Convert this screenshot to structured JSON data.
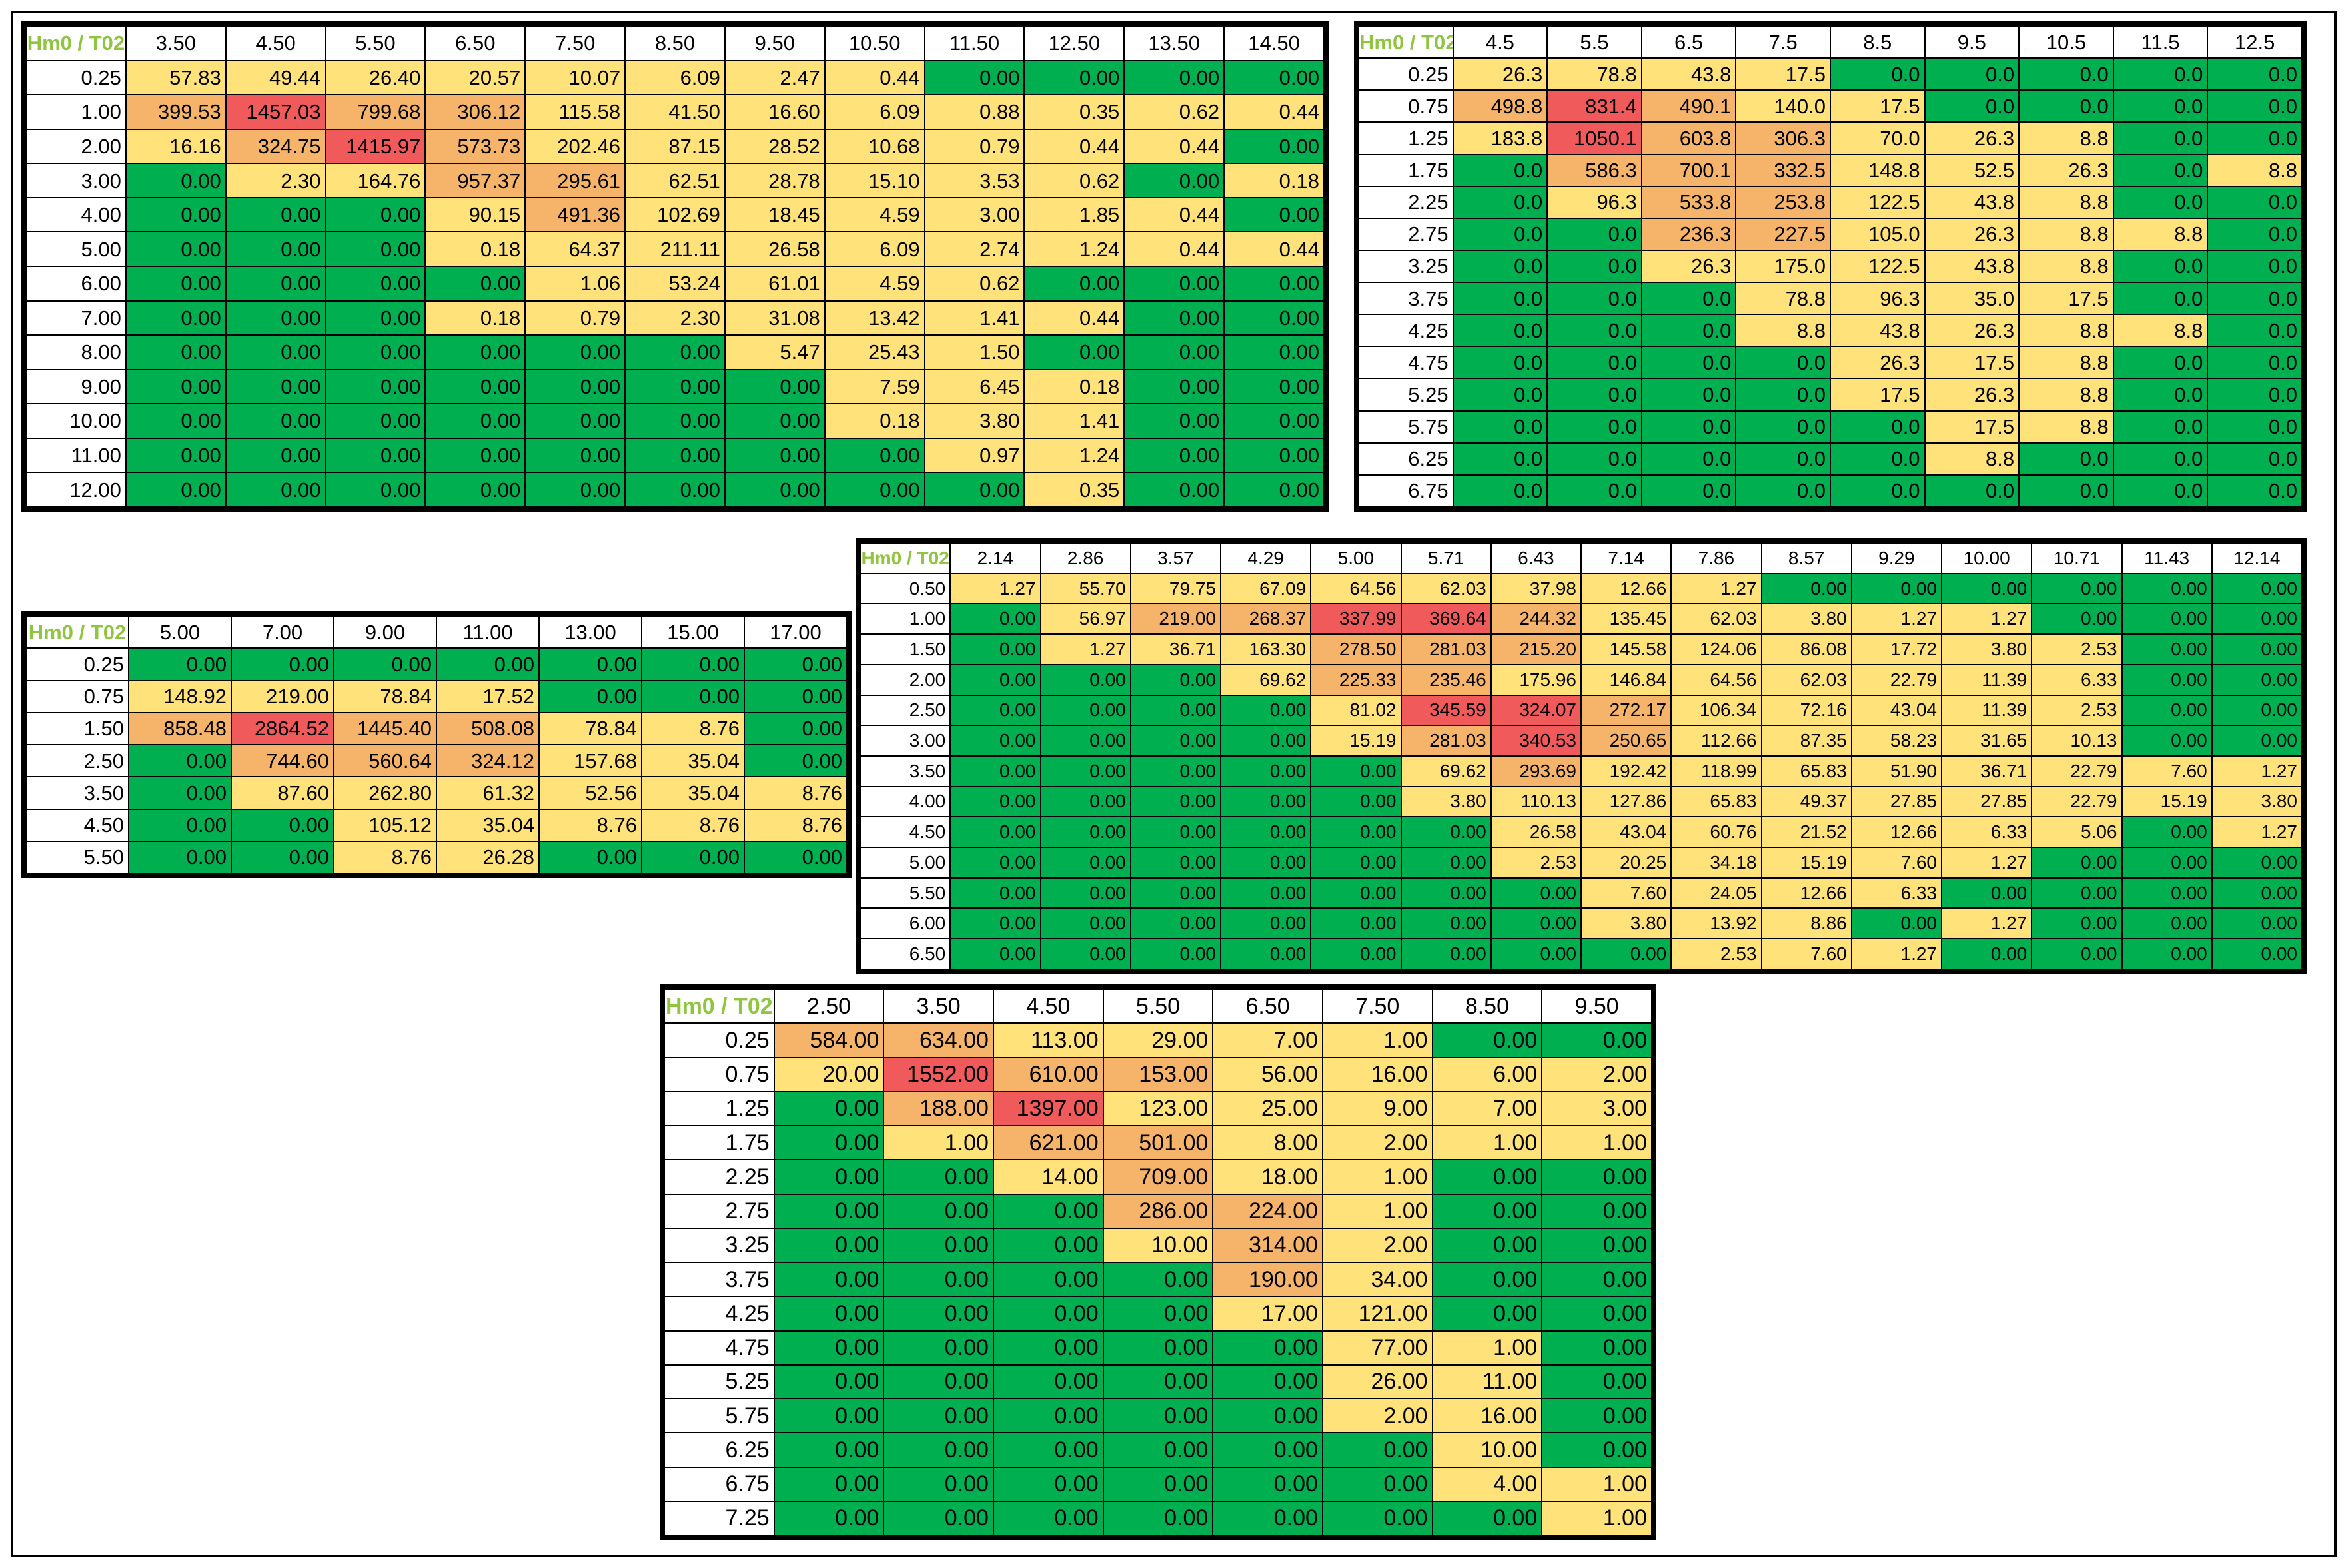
{
  "colors": {
    "green": "#00b050",
    "yellow": "#ffe27a",
    "orange": "#f6b46b",
    "red": "#f15a5a",
    "corner_text": "#8fc53f"
  },
  "chart_data": [
    {
      "type": "table",
      "corner": "Hm0 / T02",
      "columns": [
        "3.50",
        "4.50",
        "5.50",
        "6.50",
        "7.50",
        "8.50",
        "9.50",
        "10.50",
        "11.50",
        "12.50",
        "13.50",
        "14.50"
      ],
      "rows": [
        "0.25",
        "1.00",
        "2.00",
        "3.00",
        "4.00",
        "5.00",
        "6.00",
        "7.00",
        "8.00",
        "9.00",
        "10.00",
        "11.00",
        "12.00"
      ],
      "values": [
        [
          "57.83",
          "49.44",
          "26.40",
          "20.57",
          "10.07",
          "6.09",
          "2.47",
          "0.44",
          "0.00",
          "0.00",
          "0.00",
          "0.00"
        ],
        [
          "399.53",
          "1457.03",
          "799.68",
          "306.12",
          "115.58",
          "41.50",
          "16.60",
          "6.09",
          "0.88",
          "0.35",
          "0.62",
          "0.44"
        ],
        [
          "16.16",
          "324.75",
          "1415.97",
          "573.73",
          "202.46",
          "87.15",
          "28.52",
          "10.68",
          "0.79",
          "0.44",
          "0.44",
          "0.00"
        ],
        [
          "0.00",
          "2.30",
          "164.76",
          "957.37",
          "295.61",
          "62.51",
          "28.78",
          "15.10",
          "3.53",
          "0.62",
          "0.00",
          "0.18"
        ],
        [
          "0.00",
          "0.00",
          "0.00",
          "90.15",
          "491.36",
          "102.69",
          "18.45",
          "4.59",
          "3.00",
          "1.85",
          "0.44",
          "0.00"
        ],
        [
          "0.00",
          "0.00",
          "0.00",
          "0.18",
          "64.37",
          "211.11",
          "26.58",
          "6.09",
          "2.74",
          "1.24",
          "0.44",
          "0.44"
        ],
        [
          "0.00",
          "0.00",
          "0.00",
          "0.00",
          "1.06",
          "53.24",
          "61.01",
          "4.59",
          "0.62",
          "0.00",
          "0.00",
          "0.00"
        ],
        [
          "0.00",
          "0.00",
          "0.00",
          "0.18",
          "0.79",
          "2.30",
          "31.08",
          "13.42",
          "1.41",
          "0.44",
          "0.00",
          "0.00"
        ],
        [
          "0.00",
          "0.00",
          "0.00",
          "0.00",
          "0.00",
          "0.00",
          "5.47",
          "25.43",
          "1.50",
          "0.00",
          "0.00",
          "0.00"
        ],
        [
          "0.00",
          "0.00",
          "0.00",
          "0.00",
          "0.00",
          "0.00",
          "0.00",
          "7.59",
          "6.45",
          "0.18",
          "0.00",
          "0.00"
        ],
        [
          "0.00",
          "0.00",
          "0.00",
          "0.00",
          "0.00",
          "0.00",
          "0.00",
          "0.18",
          "3.80",
          "1.41",
          "0.00",
          "0.00"
        ],
        [
          "0.00",
          "0.00",
          "0.00",
          "0.00",
          "0.00",
          "0.00",
          "0.00",
          "0.00",
          "0.97",
          "1.24",
          "0.00",
          "0.00"
        ],
        [
          "0.00",
          "0.00",
          "0.00",
          "0.00",
          "0.00",
          "0.00",
          "0.00",
          "0.00",
          "0.00",
          "0.35",
          "0.00",
          "0.00"
        ]
      ],
      "color_thresholds": [
        0.001,
        250,
        1000
      ]
    },
    {
      "type": "table",
      "corner": "Hm0 / T02",
      "columns": [
        "4.5",
        "5.5",
        "6.5",
        "7.5",
        "8.5",
        "9.5",
        "10.5",
        "11.5",
        "12.5"
      ],
      "rows": [
        "0.25",
        "0.75",
        "1.25",
        "1.75",
        "2.25",
        "2.75",
        "3.25",
        "3.75",
        "4.25",
        "4.75",
        "5.25",
        "5.75",
        "6.25",
        "6.75"
      ],
      "values": [
        [
          "26.3",
          "78.8",
          "43.8",
          "17.5",
          "0.0",
          "0.0",
          "0.0",
          "0.0",
          "0.0"
        ],
        [
          "498.8",
          "831.4",
          "490.1",
          "140.0",
          "17.5",
          "0.0",
          "0.0",
          "0.0",
          "0.0"
        ],
        [
          "183.8",
          "1050.1",
          "603.8",
          "306.3",
          "70.0",
          "26.3",
          "8.8",
          "0.0",
          "0.0"
        ],
        [
          "0.0",
          "586.3",
          "700.1",
          "332.5",
          "148.8",
          "52.5",
          "26.3",
          "0.0",
          "8.8"
        ],
        [
          "0.0",
          "96.3",
          "533.8",
          "253.8",
          "122.5",
          "43.8",
          "8.8",
          "0.0",
          "0.0"
        ],
        [
          "0.0",
          "0.0",
          "236.3",
          "227.5",
          "105.0",
          "26.3",
          "8.8",
          "8.8",
          "0.0"
        ],
        [
          "0.0",
          "0.0",
          "26.3",
          "175.0",
          "122.5",
          "43.8",
          "8.8",
          "0.0",
          "0.0"
        ],
        [
          "0.0",
          "0.0",
          "0.0",
          "78.8",
          "96.3",
          "35.0",
          "17.5",
          "0.0",
          "0.0"
        ],
        [
          "0.0",
          "0.0",
          "0.0",
          "8.8",
          "43.8",
          "26.3",
          "8.8",
          "8.8",
          "0.0"
        ],
        [
          "0.0",
          "0.0",
          "0.0",
          "0.0",
          "26.3",
          "17.5",
          "8.8",
          "0.0",
          "0.0"
        ],
        [
          "0.0",
          "0.0",
          "0.0",
          "0.0",
          "17.5",
          "26.3",
          "8.8",
          "0.0",
          "0.0"
        ],
        [
          "0.0",
          "0.0",
          "0.0",
          "0.0",
          "0.0",
          "17.5",
          "8.8",
          "0.0",
          "0.0"
        ],
        [
          "0.0",
          "0.0",
          "0.0",
          "0.0",
          "0.0",
          "8.8",
          "0.0",
          "0.0",
          "0.0"
        ],
        [
          "0.0",
          "0.0",
          "0.0",
          "0.0",
          "0.0",
          "0.0",
          "0.0",
          "0.0",
          "0.0"
        ]
      ],
      "color_thresholds": [
        0.001,
        200,
        750
      ]
    },
    {
      "type": "table",
      "corner": "Hm0 / T02",
      "columns": [
        "5.00",
        "7.00",
        "9.00",
        "11.00",
        "13.00",
        "15.00",
        "17.00"
      ],
      "rows": [
        "0.25",
        "0.75",
        "1.50",
        "2.50",
        "3.50",
        "4.50",
        "5.50"
      ],
      "values": [
        [
          "0.00",
          "0.00",
          "0.00",
          "0.00",
          "0.00",
          "0.00",
          "0.00"
        ],
        [
          "148.92",
          "219.00",
          "78.84",
          "17.52",
          "0.00",
          "0.00",
          "0.00"
        ],
        [
          "858.48",
          "2864.52",
          "1445.40",
          "508.08",
          "78.84",
          "8.76",
          "0.00"
        ],
        [
          "0.00",
          "744.60",
          "560.64",
          "324.12",
          "157.68",
          "35.04",
          "0.00"
        ],
        [
          "0.00",
          "87.60",
          "262.80",
          "61.32",
          "52.56",
          "35.04",
          "8.76"
        ],
        [
          "0.00",
          "0.00",
          "105.12",
          "35.04",
          "8.76",
          "8.76",
          "8.76"
        ],
        [
          "0.00",
          "0.00",
          "8.76",
          "26.28",
          "0.00",
          "0.00",
          "0.00"
        ]
      ],
      "color_thresholds": [
        0.001,
        300,
        2000
      ]
    },
    {
      "type": "table",
      "corner": "Hm0 / T02",
      "columns": [
        "2.14",
        "2.86",
        "3.57",
        "4.29",
        "5.00",
        "5.71",
        "6.43",
        "7.14",
        "7.86",
        "8.57",
        "9.29",
        "10.00",
        "10.71",
        "11.43",
        "12.14"
      ],
      "rows": [
        "0.50",
        "1.00",
        "1.50",
        "2.00",
        "2.50",
        "3.00",
        "3.50",
        "4.00",
        "4.50",
        "5.00",
        "5.50",
        "6.00",
        "6.50"
      ],
      "values": [
        [
          "1.27",
          "55.70",
          "79.75",
          "67.09",
          "64.56",
          "62.03",
          "37.98",
          "12.66",
          "1.27",
          "0.00",
          "0.00",
          "0.00",
          "0.00",
          "0.00",
          "0.00"
        ],
        [
          "0.00",
          "56.97",
          "219.00",
          "268.37",
          "337.99",
          "369.64",
          "244.32",
          "135.45",
          "62.03",
          "3.80",
          "1.27",
          "1.27",
          "0.00",
          "0.00",
          "0.00"
        ],
        [
          "0.00",
          "1.27",
          "36.71",
          "163.30",
          "278.50",
          "281.03",
          "215.20",
          "145.58",
          "124.06",
          "86.08",
          "17.72",
          "3.80",
          "2.53",
          "0.00",
          "0.00"
        ],
        [
          "0.00",
          "0.00",
          "0.00",
          "69.62",
          "225.33",
          "235.46",
          "175.96",
          "146.84",
          "64.56",
          "62.03",
          "22.79",
          "11.39",
          "6.33",
          "0.00",
          "0.00"
        ],
        [
          "0.00",
          "0.00",
          "0.00",
          "0.00",
          "81.02",
          "345.59",
          "324.07",
          "272.17",
          "106.34",
          "72.16",
          "43.04",
          "11.39",
          "2.53",
          "0.00",
          "0.00"
        ],
        [
          "0.00",
          "0.00",
          "0.00",
          "0.00",
          "15.19",
          "281.03",
          "340.53",
          "250.65",
          "112.66",
          "87.35",
          "58.23",
          "31.65",
          "10.13",
          "0.00",
          "0.00"
        ],
        [
          "0.00",
          "0.00",
          "0.00",
          "0.00",
          "0.00",
          "69.62",
          "293.69",
          "192.42",
          "118.99",
          "65.83",
          "51.90",
          "36.71",
          "22.79",
          "7.60",
          "1.27"
        ],
        [
          "0.00",
          "0.00",
          "0.00",
          "0.00",
          "0.00",
          "3.80",
          "110.13",
          "127.86",
          "65.83",
          "49.37",
          "27.85",
          "27.85",
          "22.79",
          "15.19",
          "3.80"
        ],
        [
          "0.00",
          "0.00",
          "0.00",
          "0.00",
          "0.00",
          "0.00",
          "26.58",
          "43.04",
          "60.76",
          "21.52",
          "12.66",
          "6.33",
          "5.06",
          "0.00",
          "1.27"
        ],
        [
          "0.00",
          "0.00",
          "0.00",
          "0.00",
          "0.00",
          "0.00",
          "2.53",
          "20.25",
          "34.18",
          "15.19",
          "7.60",
          "1.27",
          "0.00",
          "0.00",
          "0.00"
        ],
        [
          "0.00",
          "0.00",
          "0.00",
          "0.00",
          "0.00",
          "0.00",
          "0.00",
          "7.60",
          "24.05",
          "12.66",
          "6.33",
          "0.00",
          "0.00",
          "0.00",
          "0.00"
        ],
        [
          "0.00",
          "0.00",
          "0.00",
          "0.00",
          "0.00",
          "0.00",
          "0.00",
          "3.80",
          "13.92",
          "8.86",
          "0.00",
          "1.27",
          "0.00",
          "0.00",
          "0.00"
        ],
        [
          "0.00",
          "0.00",
          "0.00",
          "0.00",
          "0.00",
          "0.00",
          "0.00",
          "0.00",
          "2.53",
          "7.60",
          "1.27",
          "0.00",
          "0.00",
          "0.00",
          "0.00"
        ]
      ],
      "color_thresholds": [
        0.001,
        200,
        300
      ]
    },
    {
      "type": "table",
      "corner": "Hm0 / T02",
      "columns": [
        "2.50",
        "3.50",
        "4.50",
        "5.50",
        "6.50",
        "7.50",
        "8.50",
        "9.50"
      ],
      "rows": [
        "0.25",
        "0.75",
        "1.25",
        "1.75",
        "2.25",
        "2.75",
        "3.25",
        "3.75",
        "4.25",
        "4.75",
        "5.25",
        "5.75",
        "6.25",
        "6.75",
        "7.25"
      ],
      "values": [
        [
          "584.00",
          "634.00",
          "113.00",
          "29.00",
          "7.00",
          "1.00",
          "0.00",
          "0.00"
        ],
        [
          "20.00",
          "1552.00",
          "610.00",
          "153.00",
          "56.00",
          "16.00",
          "6.00",
          "2.00"
        ],
        [
          "0.00",
          "188.00",
          "1397.00",
          "123.00",
          "25.00",
          "9.00",
          "7.00",
          "3.00"
        ],
        [
          "0.00",
          "1.00",
          "621.00",
          "501.00",
          "8.00",
          "2.00",
          "1.00",
          "1.00"
        ],
        [
          "0.00",
          "0.00",
          "14.00",
          "709.00",
          "18.00",
          "1.00",
          "0.00",
          "0.00"
        ],
        [
          "0.00",
          "0.00",
          "0.00",
          "286.00",
          "224.00",
          "1.00",
          "0.00",
          "0.00"
        ],
        [
          "0.00",
          "0.00",
          "0.00",
          "10.00",
          "314.00",
          "2.00",
          "0.00",
          "0.00"
        ],
        [
          "0.00",
          "0.00",
          "0.00",
          "0.00",
          "190.00",
          "34.00",
          "0.00",
          "0.00"
        ],
        [
          "0.00",
          "0.00",
          "0.00",
          "0.00",
          "17.00",
          "121.00",
          "0.00",
          "0.00"
        ],
        [
          "0.00",
          "0.00",
          "0.00",
          "0.00",
          "0.00",
          "77.00",
          "1.00",
          "0.00"
        ],
        [
          "0.00",
          "0.00",
          "0.00",
          "0.00",
          "0.00",
          "26.00",
          "11.00",
          "0.00"
        ],
        [
          "0.00",
          "0.00",
          "0.00",
          "0.00",
          "0.00",
          "2.00",
          "16.00",
          "0.00"
        ],
        [
          "0.00",
          "0.00",
          "0.00",
          "0.00",
          "0.00",
          "0.00",
          "10.00",
          "0.00"
        ],
        [
          "0.00",
          "0.00",
          "0.00",
          "0.00",
          "0.00",
          "0.00",
          "4.00",
          "1.00"
        ],
        [
          "0.00",
          "0.00",
          "0.00",
          "0.00",
          "0.00",
          "0.00",
          "0.00",
          "1.00"
        ]
      ],
      "color_thresholds": [
        0.001,
        150,
        1000
      ]
    }
  ]
}
